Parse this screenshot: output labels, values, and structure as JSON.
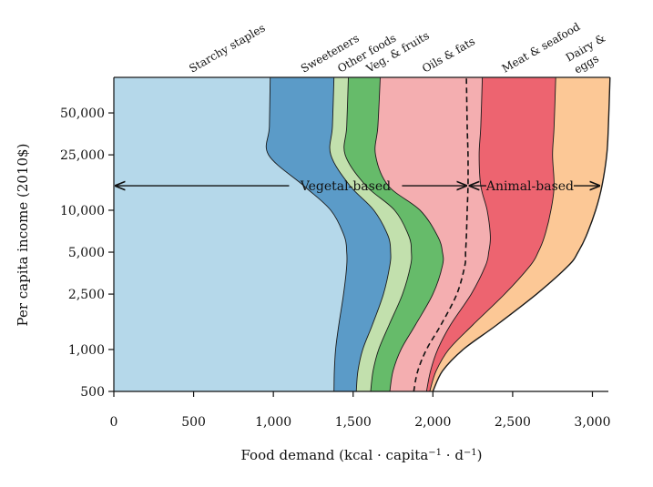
{
  "chart_data": {
    "type": "area",
    "orientation": "horizontal-stacked",
    "xlabel_main": "Food demand (kcal · capita",
    "xlabel_sup1": "−1",
    "xlabel_mid": " · d",
    "xlabel_sup2": "−1",
    "xlabel_end": ")",
    "ylabel": "Per capita income (2010$)",
    "xlim": [
      0,
      3100
    ],
    "ylim": [
      500,
      90000
    ],
    "y_scale": "log",
    "x_ticks": [
      0,
      500,
      1000,
      1500,
      2000,
      2500,
      3000
    ],
    "x_tick_labels": [
      "0",
      "500",
      "1,000",
      "1,500",
      "2,000",
      "2,500",
      "3,000"
    ],
    "y_ticks": [
      500,
      1000,
      2500,
      5000,
      10000,
      25000,
      50000
    ],
    "y_tick_labels": [
      "500",
      "1,000",
      "2,500",
      "5,000",
      "10,000",
      "25,000",
      "50,000"
    ],
    "income_levels": [
      500,
      700,
      1000,
      1500,
      2500,
      4000,
      5000,
      6500,
      10000,
      15000,
      25000,
      40000,
      90000
    ],
    "series": [
      {
        "name": "Starchy staples",
        "color": "#b5d8ea",
        "cumulative": [
          1380,
          1382,
          1390,
          1410,
          1440,
          1460,
          1460,
          1445,
          1360,
          1190,
          970,
          975,
          980
        ]
      },
      {
        "name": "Sweeteners",
        "color": "#5b9bc8",
        "cumulative": [
          1520,
          1530,
          1560,
          1620,
          1690,
          1730,
          1735,
          1720,
          1630,
          1480,
          1360,
          1370,
          1380
        ]
      },
      {
        "name": "Other foods",
        "color": "#c2e0ad",
        "cumulative": [
          1610,
          1625,
          1660,
          1725,
          1810,
          1860,
          1865,
          1850,
          1760,
          1580,
          1450,
          1460,
          1470
        ]
      },
      {
        "name": "Veg. & fruits",
        "color": "#66bb6a",
        "cumulative": [
          1730,
          1750,
          1800,
          1890,
          2000,
          2060,
          2060,
          2030,
          1920,
          1720,
          1640,
          1655,
          1670
        ]
      },
      {
        "name": "Oils & fats",
        "color": "#f4aeb0",
        "cumulative": [
          1960,
          1985,
          2030,
          2110,
          2240,
          2330,
          2350,
          2360,
          2340,
          2300,
          2290,
          2300,
          2310
        ]
      },
      {
        "name": "Meat & seafood",
        "color": "#ed6470",
        "cumulative": [
          1980,
          2020,
          2100,
          2250,
          2450,
          2610,
          2660,
          2700,
          2740,
          2760,
          2750,
          2760,
          2770
        ]
      },
      {
        "name": "Dairy & eggs",
        "color": "#fcc896",
        "cumulative": [
          2000,
          2060,
          2190,
          2400,
          2650,
          2850,
          2910,
          2960,
          3020,
          3060,
          3090,
          3100,
          3110
        ]
      }
    ],
    "vegetal_animal_boundary": [
      1880,
      1905,
      1960,
      2050,
      2150,
      2200,
      2205,
      2210,
      2215,
      2220,
      2220,
      2215,
      2210
    ],
    "annotations": {
      "vegetal": "Vegetal-based",
      "animal": "Animal-based",
      "arrow_income": 15000,
      "vegetal_range": [
        0,
        2220
      ],
      "animal_range": [
        2220,
        3100
      ]
    },
    "category_labels": [
      {
        "text": "Starchy staples",
        "anchor_x": 490
      },
      {
        "text": "Sweeteners",
        "anchor_x": 1190
      },
      {
        "text": "Other foods",
        "anchor_x": 1420
      },
      {
        "text": "Veg. & fruits",
        "anchor_x": 1600
      },
      {
        "text": "Oils & fats",
        "anchor_x": 1950
      },
      {
        "text": "Meat & seafood",
        "anchor_x": 2450
      },
      {
        "text": "Dairy &",
        "anchor_x": 2850
      },
      {
        "text": "eggs",
        "anchor_x": 2880
      }
    ]
  }
}
